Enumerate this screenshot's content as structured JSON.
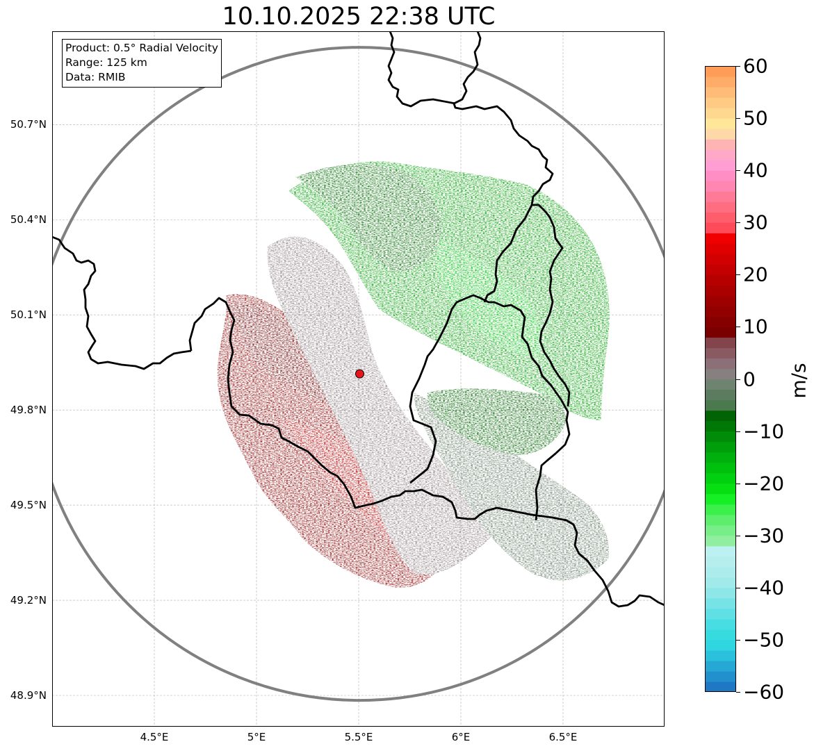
{
  "title": "10.10.2025 22:38 UTC",
  "info": {
    "product": "Product: 0.5° Radial Velocity",
    "range": "Range: 125 km",
    "data": "Data: RMIB"
  },
  "map": {
    "lon_range": [
      4.0,
      7.0
    ],
    "lat_range": [
      48.8,
      51.0
    ],
    "radar_site": {
      "lon": 5.505,
      "lat": 49.914,
      "range_km": 125
    },
    "lat_ticks": [
      {
        "value": 48.9,
        "label": "48.9°N"
      },
      {
        "value": 49.2,
        "label": "49.2°N"
      },
      {
        "value": 49.5,
        "label": "49.5°N"
      },
      {
        "value": 49.8,
        "label": "49.8°N"
      },
      {
        "value": 50.1,
        "label": "50.1°N"
      },
      {
        "value": 50.4,
        "label": "50.4°N"
      },
      {
        "value": 50.7,
        "label": "50.7°N"
      }
    ],
    "lon_ticks": [
      {
        "value": 4.5,
        "label": "4.5°E"
      },
      {
        "value": 5.0,
        "label": "5°E"
      },
      {
        "value": 5.5,
        "label": "5.5°E"
      },
      {
        "value": 6.0,
        "label": "6°E"
      },
      {
        "value": 6.5,
        "label": "6.5°E"
      }
    ],
    "colors": {
      "ring": "#808080",
      "border": "#000000",
      "radar_marker": "#e8141c",
      "grid": "#b0b0b0"
    }
  },
  "colorbar": {
    "unit": "m/s",
    "min": -60,
    "max": 60,
    "ticks": [
      {
        "value": 60,
        "label": "60"
      },
      {
        "value": 50,
        "label": "50"
      },
      {
        "value": 40,
        "label": "40"
      },
      {
        "value": 30,
        "label": "30"
      },
      {
        "value": 20,
        "label": "20"
      },
      {
        "value": 10,
        "label": "10"
      },
      {
        "value": 0,
        "label": "0"
      },
      {
        "value": -10,
        "label": "−10"
      },
      {
        "value": -20,
        "label": "−20"
      },
      {
        "value": -30,
        "label": "−30"
      },
      {
        "value": -40,
        "label": "−40"
      },
      {
        "value": -50,
        "label": "−50"
      },
      {
        "value": -60,
        "label": "−60"
      }
    ],
    "stops": [
      {
        "from": -60,
        "to": -58,
        "color": "#1f78c4"
      },
      {
        "from": -58,
        "to": -56,
        "color": "#2290cc"
      },
      {
        "from": -56,
        "to": -54,
        "color": "#26a8d4"
      },
      {
        "from": -54,
        "to": -52,
        "color": "#2bc0dc"
      },
      {
        "from": -52,
        "to": -50,
        "color": "#2fd6e0"
      },
      {
        "from": -50,
        "to": -48,
        "color": "#36dbe0"
      },
      {
        "from": -48,
        "to": -46,
        "color": "#48dde2"
      },
      {
        "from": -46,
        "to": -44,
        "color": "#5fe0e4"
      },
      {
        "from": -44,
        "to": -42,
        "color": "#76e3e6"
      },
      {
        "from": -42,
        "to": -40,
        "color": "#8de7e8"
      },
      {
        "from": -40,
        "to": -38,
        "color": "#a0eaea"
      },
      {
        "from": -38,
        "to": -36,
        "color": "#adecec"
      },
      {
        "from": -36,
        "to": -34,
        "color": "#b6eeee"
      },
      {
        "from": -34,
        "to": -32,
        "color": "#bdf0f0"
      },
      {
        "from": -32,
        "to": -30,
        "color": "#90eea0"
      },
      {
        "from": -30,
        "to": -28,
        "color": "#78ee88"
      },
      {
        "from": -28,
        "to": -26,
        "color": "#5cee6c"
      },
      {
        "from": -26,
        "to": -24,
        "color": "#3cf04c"
      },
      {
        "from": -24,
        "to": -22,
        "color": "#14f024"
      },
      {
        "from": -22,
        "to": -20,
        "color": "#06e012"
      },
      {
        "from": -20,
        "to": -18,
        "color": "#00d010"
      },
      {
        "from": -18,
        "to": -16,
        "color": "#00c00e"
      },
      {
        "from": -16,
        "to": -14,
        "color": "#00b00c"
      },
      {
        "from": -14,
        "to": -12,
        "color": "#009e0a"
      },
      {
        "from": -12,
        "to": -10,
        "color": "#008c08"
      },
      {
        "from": -10,
        "to": -8,
        "color": "#007806"
      },
      {
        "from": -8,
        "to": -6,
        "color": "#006404"
      },
      {
        "from": -6,
        "to": -4,
        "color": "#4a7a4e"
      },
      {
        "from": -4,
        "to": -2,
        "color": "#5c7c60"
      },
      {
        "from": -2,
        "to": 0,
        "color": "#6e8470"
      },
      {
        "from": 0,
        "to": 2,
        "color": "#868080"
      },
      {
        "from": 2,
        "to": 4,
        "color": "#8c7078"
      },
      {
        "from": 4,
        "to": 6,
        "color": "#8a5a62"
      },
      {
        "from": 6,
        "to": 8,
        "color": "#84444c"
      },
      {
        "from": 8,
        "to": 10,
        "color": "#7a0000"
      },
      {
        "from": 10,
        "to": 12,
        "color": "#860000"
      },
      {
        "from": 12,
        "to": 14,
        "color": "#920000"
      },
      {
        "from": 14,
        "to": 16,
        "color": "#9e0000"
      },
      {
        "from": 16,
        "to": 18,
        "color": "#aa0000"
      },
      {
        "from": 18,
        "to": 20,
        "color": "#b60000"
      },
      {
        "from": 20,
        "to": 22,
        "color": "#c40000"
      },
      {
        "from": 22,
        "to": 24,
        "color": "#d20000"
      },
      {
        "from": 24,
        "to": 26,
        "color": "#e00000"
      },
      {
        "from": 26,
        "to": 28,
        "color": "#f00000"
      },
      {
        "from": 28,
        "to": 30,
        "color": "#ff4a5a"
      },
      {
        "from": 30,
        "to": 32,
        "color": "#ff5c6c"
      },
      {
        "from": 32,
        "to": 34,
        "color": "#ff6e80"
      },
      {
        "from": 34,
        "to": 36,
        "color": "#ff7a96"
      },
      {
        "from": 36,
        "to": 38,
        "color": "#ff86b0"
      },
      {
        "from": 38,
        "to": 40,
        "color": "#ff8ec4"
      },
      {
        "from": 40,
        "to": 42,
        "color": "#ff9ed2"
      },
      {
        "from": 42,
        "to": 44,
        "color": "#ffa8c8"
      },
      {
        "from": 44,
        "to": 46,
        "color": "#ffb4b4"
      },
      {
        "from": 46,
        "to": 48,
        "color": "#ffd8a8"
      },
      {
        "from": 48,
        "to": 50,
        "color": "#ffe698"
      },
      {
        "from": 50,
        "to": 52,
        "color": "#ffd890"
      },
      {
        "from": 52,
        "to": 54,
        "color": "#ffca84"
      },
      {
        "from": 54,
        "to": 56,
        "color": "#ffbc78"
      },
      {
        "from": 56,
        "to": 58,
        "color": "#ffac68"
      },
      {
        "from": 58,
        "to": 60,
        "color": "#ff9c58"
      }
    ]
  }
}
